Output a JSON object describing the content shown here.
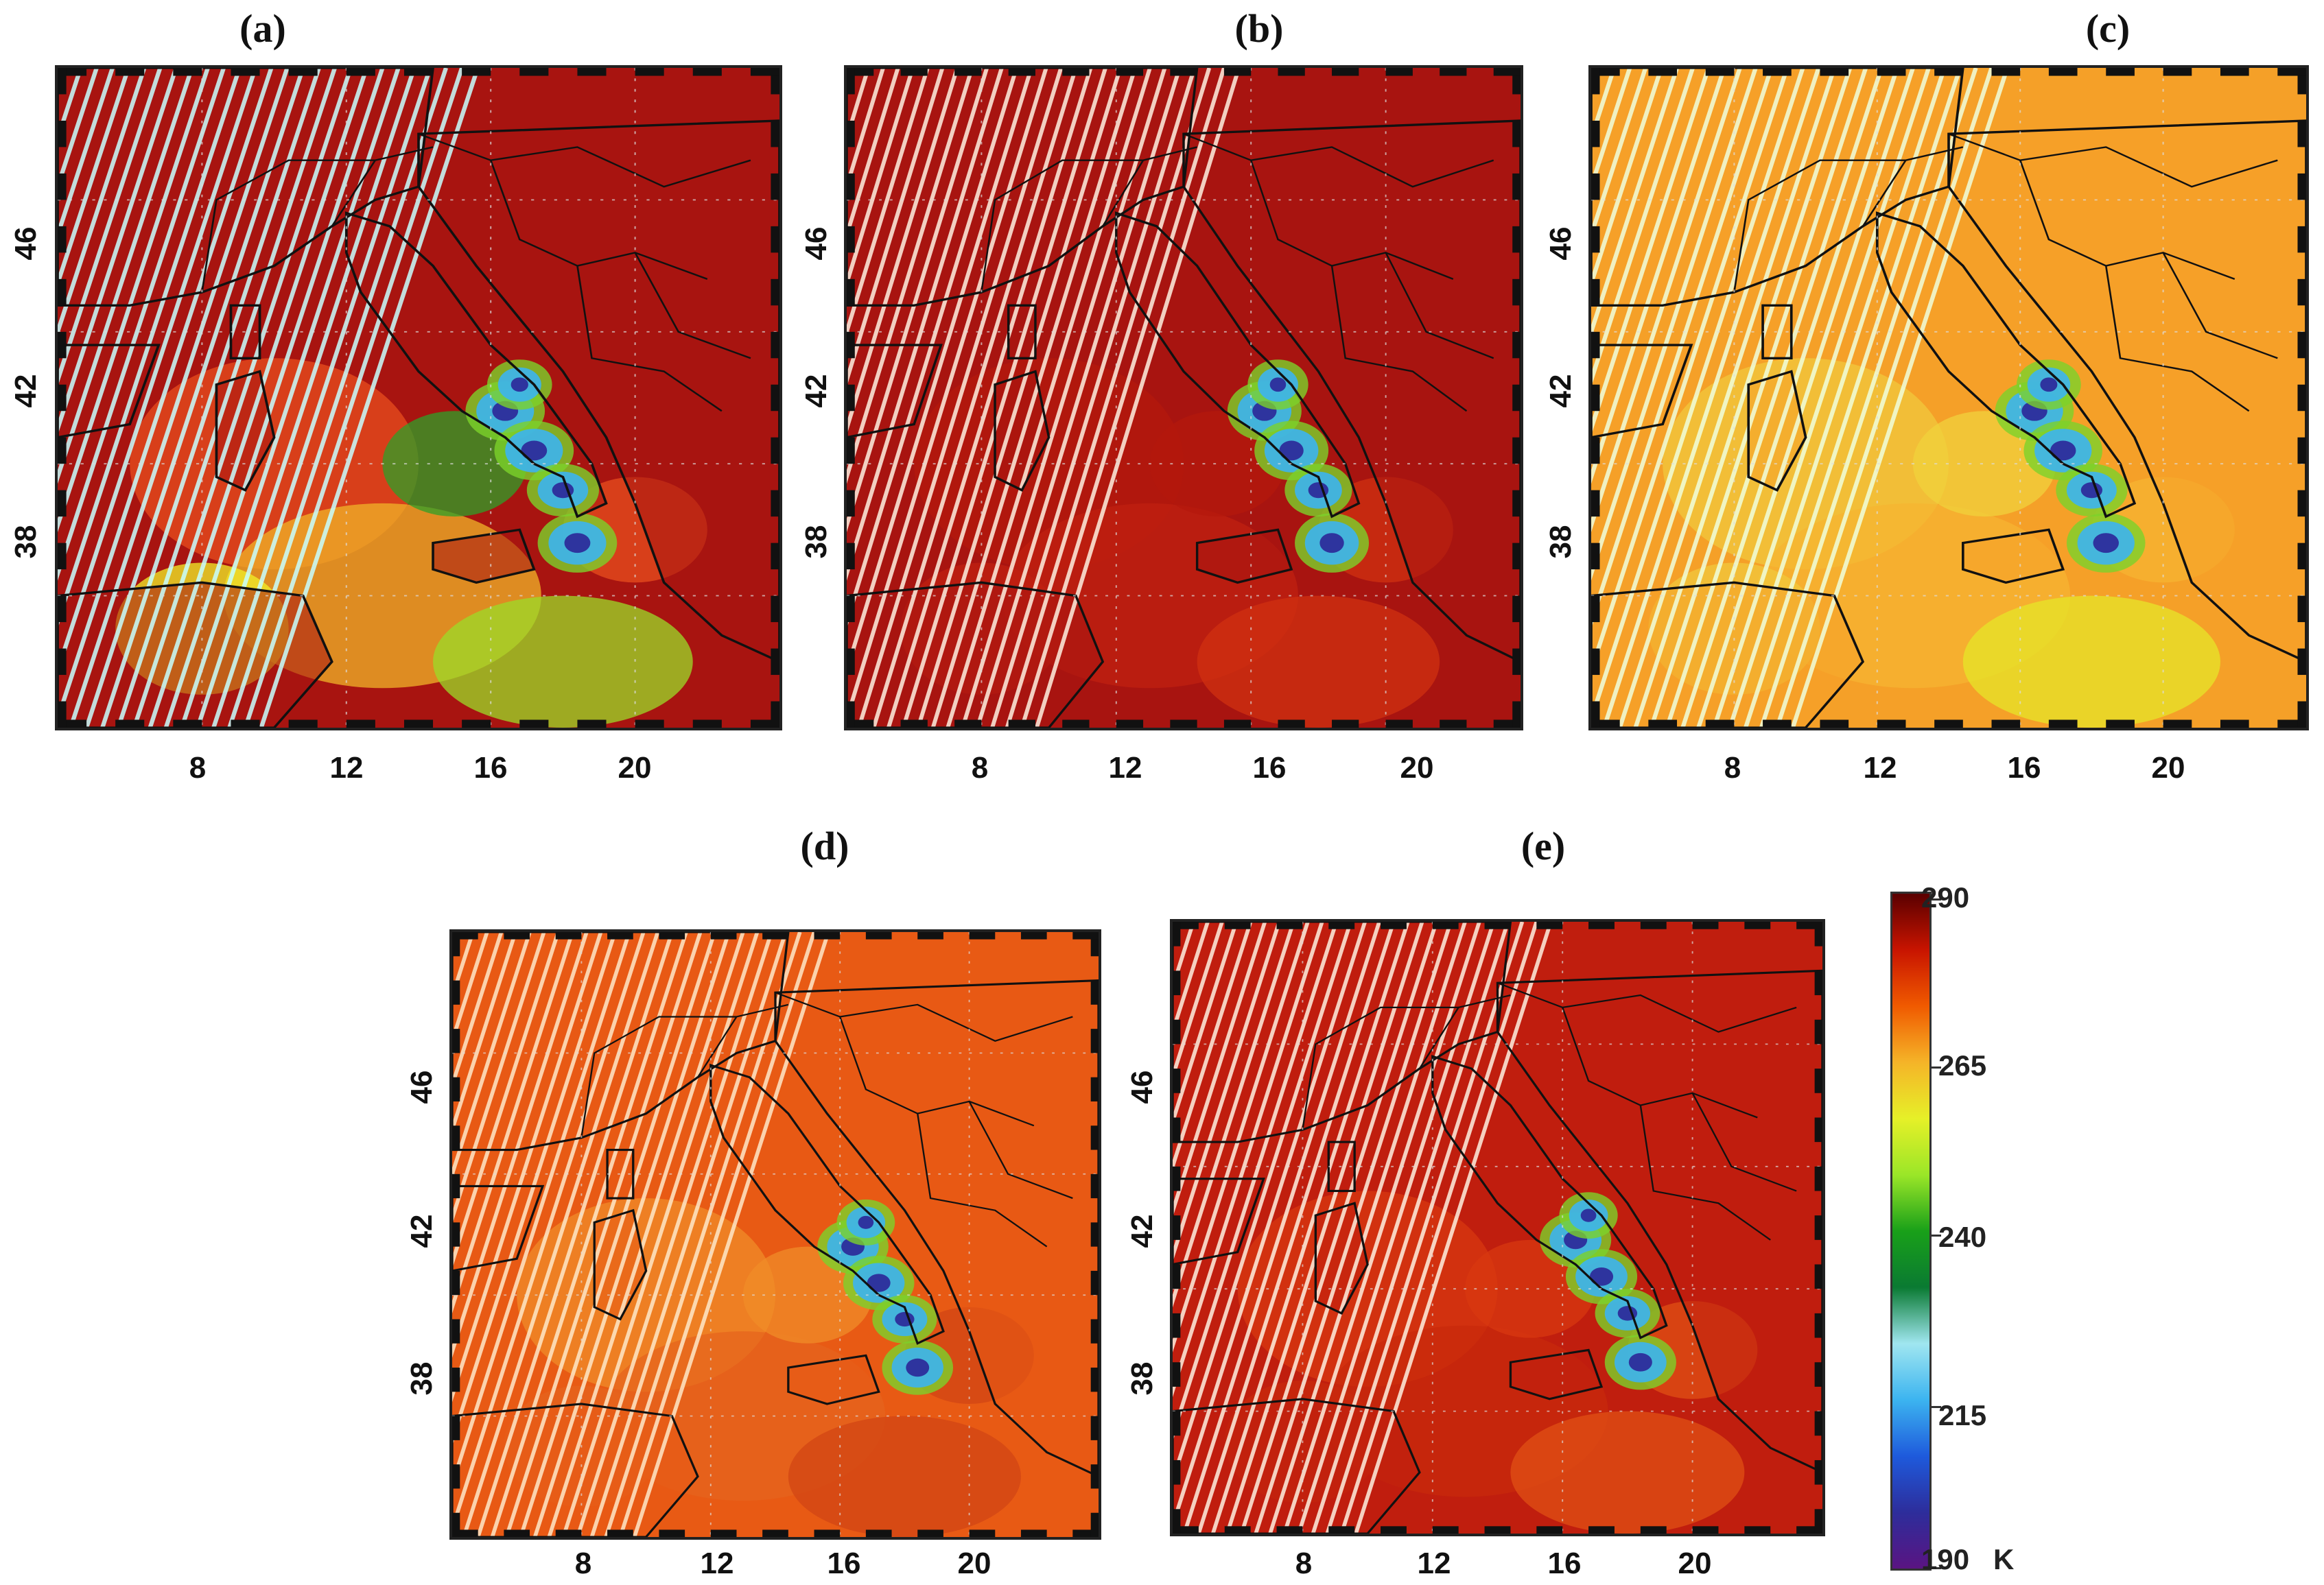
{
  "panels": [
    {
      "id": "a",
      "label": "(a)",
      "x_ticks": [
        "8",
        "12",
        "16",
        "20"
      ],
      "y_ticks": [
        "46",
        "42",
        "38"
      ]
    },
    {
      "id": "b",
      "label": "(b)",
      "x_ticks": [
        "8",
        "12",
        "16",
        "20"
      ],
      "y_ticks": [
        "46",
        "42",
        "38"
      ]
    },
    {
      "id": "c",
      "label": "(c)",
      "x_ticks": [
        "8",
        "12",
        "16",
        "20"
      ],
      "y_ticks": [
        "46",
        "42",
        "38"
      ]
    },
    {
      "id": "d",
      "label": "(d)",
      "x_ticks": [
        "8",
        "12",
        "16",
        "20"
      ],
      "y_ticks": [
        "46",
        "42",
        "38"
      ]
    },
    {
      "id": "e",
      "label": "(e)",
      "x_ticks": [
        "8",
        "12",
        "16",
        "20"
      ],
      "y_ticks": [
        "46",
        "42",
        "38"
      ]
    }
  ],
  "colorbar": {
    "unit": "K",
    "min": 190,
    "max": 290,
    "tick_labels": [
      "290",
      "265",
      "240",
      "215",
      "190"
    ],
    "colors": [
      "#5a0000",
      "#c81400",
      "#f05a00",
      "#f5b428",
      "#e6f028",
      "#9be628",
      "#19a019",
      "#0a7a32",
      "#a0e6f0",
      "#3cb4f0",
      "#1e5adc",
      "#2d2d9b",
      "#5a1482"
    ]
  }
}
